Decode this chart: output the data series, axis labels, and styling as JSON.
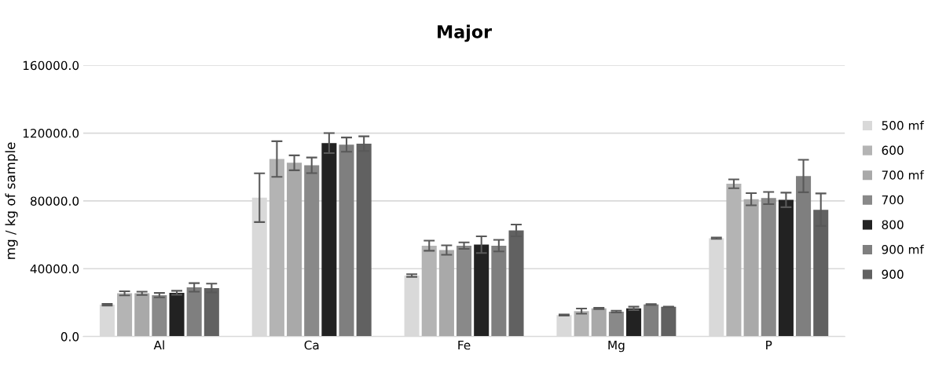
{
  "chart_data": {
    "type": "bar",
    "title": "Major",
    "ylabel": "mg / kg of sample",
    "categories": [
      "Al",
      "Ca",
      "Fe",
      "Mg",
      "P"
    ],
    "ylim": [
      0,
      160000
    ],
    "yticks": [
      {
        "value": 0,
        "label": "0.0"
      },
      {
        "value": 40000,
        "label": "40000.0"
      },
      {
        "value": 80000,
        "label": "80000.0"
      },
      {
        "value": 120000,
        "label": "120000.0"
      },
      {
        "value": 160000,
        "label": "160000.0"
      }
    ],
    "grid": "y",
    "legend": "right",
    "series": [
      {
        "name": "500 mf",
        "color": "#d9d9d9",
        "values": [
          18800,
          81900,
          36000,
          12700,
          58000
        ],
        "errors": [
          500,
          14400,
          800,
          300,
          400
        ]
      },
      {
        "name": "600",
        "color": "#b4b4b4",
        "values": [
          25500,
          104700,
          53600,
          15000,
          90100
        ],
        "errors": [
          1200,
          10500,
          3000,
          1500,
          2600
        ]
      },
      {
        "name": "700 mf",
        "color": "#a9a9a9",
        "values": [
          25500,
          102500,
          51000,
          16600,
          81000
        ],
        "errors": [
          1000,
          4400,
          2800,
          400,
          3600
        ]
      },
      {
        "name": "700",
        "color": "#898989",
        "values": [
          24400,
          101000,
          53600,
          14700,
          81700
        ],
        "errors": [
          1300,
          4600,
          1900,
          500,
          3600
        ]
      },
      {
        "name": "800",
        "color": "#222222",
        "values": [
          25800,
          114100,
          54200,
          16600,
          80600
        ],
        "errors": [
          1200,
          5900,
          4900,
          1000,
          4300
        ]
      },
      {
        "name": "900 mf",
        "color": "#7f7f7f",
        "values": [
          29000,
          113200,
          53600,
          18900,
          94700
        ],
        "errors": [
          2500,
          4200,
          3400,
          300,
          9600
        ]
      },
      {
        "name": "900",
        "color": "#616161",
        "values": [
          28600,
          113800,
          62600,
          17500,
          74800
        ],
        "errors": [
          2600,
          4300,
          3500,
          200,
          9600
        ]
      }
    ]
  }
}
